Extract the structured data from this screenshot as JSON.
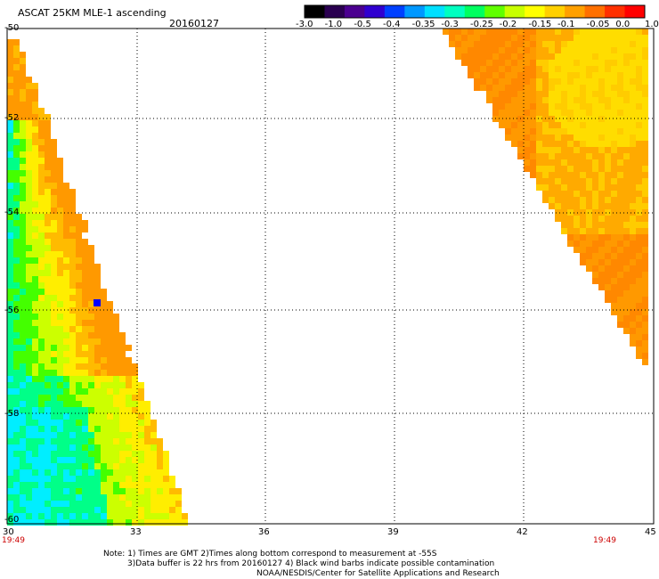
{
  "header": {
    "title": "ASCAT 25KM MLE-1 ascending",
    "date": "20160127"
  },
  "colorbar": {
    "labels": [
      "-3.0",
      "-1.0",
      "-0.5",
      "-0.4",
      "-0.35",
      "-0.3",
      "-0.25",
      "-0.2",
      "-0.15",
      "-0.1",
      "-0.05",
      "0.0",
      "1.0"
    ],
    "colors": [
      "#000000",
      "#2a0050",
      "#4b0090",
      "#3000d0",
      "#0040ff",
      "#0098ff",
      "#00e0ff",
      "#00ffc0",
      "#00ff60",
      "#60ff00",
      "#c8ff00",
      "#ffff00",
      "#ffd000",
      "#ffa000",
      "#ff7000",
      "#ff3000",
      "#ff0000"
    ]
  },
  "axes": {
    "lon_labels": [
      "30",
      "33",
      "36",
      "39",
      "42",
      "45"
    ],
    "lat_labels": [
      "-50",
      "-52",
      "-54",
      "-56",
      "-58",
      "-60"
    ]
  },
  "pass_times": [
    "19:49",
    "19:49"
  ],
  "notes": [
    "Note: 1) Times are GMT 2)Times along bottom correspond to measurement at -55S",
    "3)Data buffer is 22 hrs from 20160127 4) Black wind barbs indicate possible contamination",
    "NOAA/NESDIS/Center for Satellite Applications and Research"
  ],
  "palette": {
    "west_swath": [
      "#00eeff",
      "#00ff88",
      "#44ff00",
      "#ccff00",
      "#ffee00",
      "#ffbb00",
      "#ff9900"
    ],
    "east_swath": [
      "#ff8800",
      "#ff9900",
      "#ffaa00",
      "#ffcc00",
      "#ffdd00"
    ],
    "outlier": "#0000ff"
  }
}
